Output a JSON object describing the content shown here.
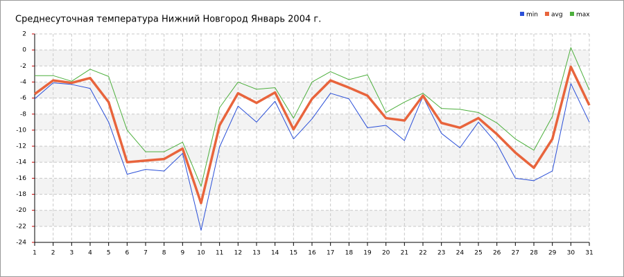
{
  "chart_data": {
    "type": "line",
    "title": "Среднесуточная температура Нижний Новгород  Январь 2004 г.",
    "x": [
      1,
      2,
      3,
      4,
      5,
      6,
      7,
      8,
      9,
      10,
      11,
      12,
      13,
      14,
      15,
      16,
      17,
      18,
      19,
      20,
      21,
      22,
      23,
      24,
      25,
      26,
      27,
      28,
      29,
      30,
      31
    ],
    "xlim": [
      1,
      31
    ],
    "xticks": [
      1,
      2,
      3,
      4,
      5,
      6,
      7,
      8,
      9,
      10,
      11,
      12,
      13,
      14,
      15,
      16,
      17,
      18,
      19,
      20,
      21,
      22,
      23,
      24,
      25,
      26,
      27,
      28,
      29,
      30,
      31
    ],
    "ylim": [
      -24,
      2
    ],
    "yticks": [
      2,
      0,
      -2,
      -4,
      -6,
      -8,
      -10,
      -12,
      -14,
      -16,
      -18,
      -20,
      -22,
      -24
    ],
    "grid": true,
    "legend": "top-right",
    "series": [
      {
        "name": "min",
        "color": "#2a4fd8",
        "values": [
          -6.1,
          -4.1,
          -4.3,
          -4.8,
          -9.0,
          -15.5,
          -14.9,
          -15.1,
          -12.9,
          -22.5,
          -12.1,
          -7.0,
          -9.0,
          -6.4,
          -11.1,
          -8.6,
          -5.4,
          -6.1,
          -9.7,
          -9.4,
          -11.3,
          -5.8,
          -10.4,
          -12.2,
          -9.0,
          -11.7,
          -16.0,
          -16.3,
          -15.1,
          -4.2,
          -9.0
        ]
      },
      {
        "name": "avg",
        "color": "#e8643c",
        "values": [
          -5.5,
          -3.8,
          -4.1,
          -3.5,
          -6.5,
          -14.0,
          -13.8,
          -13.6,
          -12.3,
          -19.1,
          -9.4,
          -5.4,
          -6.6,
          -5.3,
          -9.9,
          -6.1,
          -3.8,
          -4.7,
          -5.7,
          -8.5,
          -8.8,
          -5.7,
          -9.1,
          -9.7,
          -8.5,
          -10.5,
          -12.8,
          -14.7,
          -11.1,
          -2.1,
          -6.9
        ]
      },
      {
        "name": "max",
        "color": "#4caf3c",
        "values": [
          -3.2,
          -3.2,
          -3.9,
          -2.4,
          -3.3,
          -10.0,
          -12.7,
          -12.7,
          -11.5,
          -17.0,
          -7.2,
          -4.0,
          -4.9,
          -4.7,
          -8.5,
          -4.0,
          -2.7,
          -3.7,
          -3.1,
          -7.8,
          -6.5,
          -5.4,
          -7.3,
          -7.4,
          -7.8,
          -9.1,
          -11.1,
          -12.5,
          -8.3,
          0.3,
          -5.0
        ]
      }
    ]
  }
}
